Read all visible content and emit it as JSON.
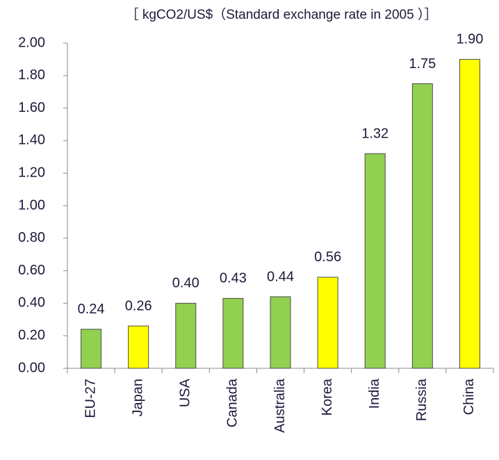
{
  "chart_data": {
    "type": "bar",
    "title": "［ kgCO2/US$（Standard exchange rate in 2005 ）］",
    "categories": [
      "EU-27",
      "Japan",
      "USA",
      "Canada",
      "Australia",
      "Korea",
      "India",
      "Russia",
      "China"
    ],
    "values": [
      0.24,
      0.26,
      0.4,
      0.43,
      0.44,
      0.56,
      1.32,
      1.75,
      1.9
    ],
    "value_labels": [
      "0.24",
      "0.26",
      "0.40",
      "0.43",
      "0.44",
      "0.56",
      "1.32",
      "1.75",
      "1.90"
    ],
    "colors": [
      "#92d050",
      "#ffff00",
      "#92d050",
      "#92d050",
      "#92d050",
      "#ffff00",
      "#92d050",
      "#92d050",
      "#ffff00"
    ],
    "ylim": [
      0,
      2
    ],
    "yticks": [
      {
        "value": 0,
        "label": "0.00"
      },
      {
        "value": 0.2,
        "label": "0.20"
      },
      {
        "value": 0.4,
        "label": "0.40"
      },
      {
        "value": 0.6,
        "label": "0.60"
      },
      {
        "value": 0.8,
        "label": "0.80"
      },
      {
        "value": 1.0,
        "label": "1.00"
      },
      {
        "value": 1.2,
        "label": "1.20"
      },
      {
        "value": 1.4,
        "label": "1.40"
      },
      {
        "value": 1.6,
        "label": "1.60"
      },
      {
        "value": 1.8,
        "label": "1.80"
      },
      {
        "value": 2.0,
        "label": "2.00"
      }
    ],
    "grid": false
  }
}
